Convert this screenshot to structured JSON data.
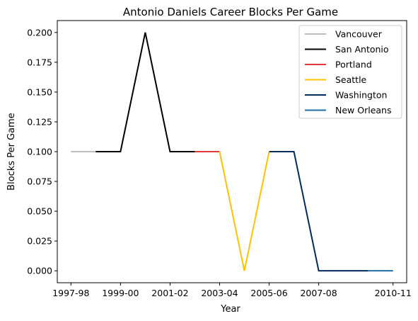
{
  "chart_data": {
    "type": "line",
    "title": "Antonio Daniels Career Blocks Per Game",
    "xlabel": "Year",
    "ylabel": "Blocks Per Game",
    "ylim": [
      -0.01,
      0.21
    ],
    "yticks": [
      0.0,
      0.025,
      0.05,
      0.075,
      0.1,
      0.125,
      0.15,
      0.175,
      0.2
    ],
    "ytick_labels": [
      "0.000",
      "0.025",
      "0.050",
      "0.075",
      "0.100",
      "0.125",
      "0.150",
      "0.175",
      "0.200"
    ],
    "categories": [
      "1997-98",
      "1998-99",
      "1999-00",
      "2000-01",
      "2001-02",
      "2002-03",
      "2003-04",
      "2004-05",
      "2005-06",
      "2006-07",
      "2007-08",
      "2008-09",
      "2009-10",
      "2010-11"
    ],
    "xtick_labels": [
      "1997-98",
      "1999-00",
      "2001-02",
      "2003-04",
      "2005-06",
      "2007-08",
      "2010-11"
    ],
    "grid": false,
    "legend_position": "top-right",
    "series": [
      {
        "name": "Vancouver",
        "color": "#bdbdbd",
        "x": [
          "1997-98",
          "1998-99"
        ],
        "values": [
          0.1,
          0.1
        ]
      },
      {
        "name": "San Antonio",
        "color": "#000000",
        "x": [
          "1998-99",
          "1999-00",
          "2000-01",
          "2001-02",
          "2002-03"
        ],
        "values": [
          0.1,
          0.1,
          0.2,
          0.1,
          0.1
        ]
      },
      {
        "name": "Portland",
        "color": "#e03a3e",
        "x": [
          "2002-03",
          "2003-04"
        ],
        "values": [
          0.1,
          0.1
        ]
      },
      {
        "name": "Seattle",
        "color": "#ffc200",
        "x": [
          "2003-04",
          "2004-05",
          "2005-06"
        ],
        "values": [
          0.1,
          0.0,
          0.1
        ]
      },
      {
        "name": "Washington",
        "color": "#002b5c",
        "x": [
          "2005-06",
          "2006-07",
          "2007-08",
          "2008-09",
          "2009-10"
        ],
        "values": [
          0.1,
          0.1,
          0.0,
          0.0,
          0.0
        ]
      },
      {
        "name": "New Orleans",
        "color": "#1f6fad",
        "x": [
          "2009-10",
          "2010-11"
        ],
        "values": [
          0.0,
          0.0
        ]
      }
    ]
  }
}
